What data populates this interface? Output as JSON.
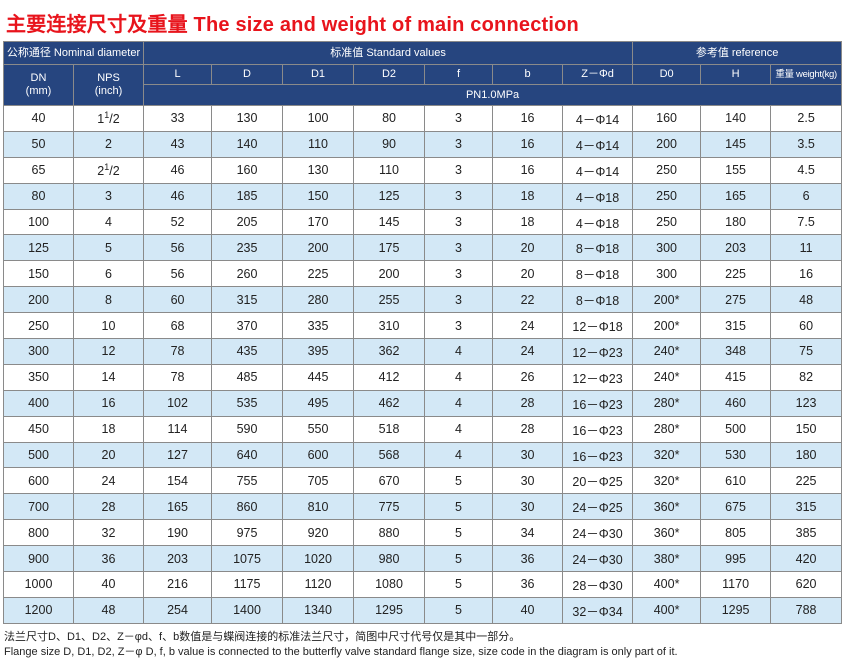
{
  "title": "主要连接尺寸及重量 The size and weight of main connection",
  "header": {
    "group_nominal": "公称通径 Nominal diameter",
    "group_standard": "标准值 Standard values",
    "group_reference": "参考值 reference",
    "dn": "DN",
    "dn_unit": "(mm)",
    "nps": "NPS",
    "nps_unit": "(inch)",
    "cols": [
      "L",
      "D",
      "D1",
      "D2",
      "f",
      "b",
      "Z－Φd",
      "D0",
      "H"
    ],
    "weight": "重量 weight(kg)",
    "pressure": "PN1.0MPa"
  },
  "rows": [
    {
      "dn": "40",
      "nps_main": "1",
      "nps_sup": "1",
      "nps_rest": "/2",
      "L": "33",
      "D": "130",
      "D1": "100",
      "D2": "80",
      "f": "3",
      "b": "16",
      "zd": "4－Φ14",
      "D0": "160",
      "H": "140",
      "w": "2.5"
    },
    {
      "dn": "50",
      "nps_main": "2",
      "nps_sup": "",
      "nps_rest": "",
      "L": "43",
      "D": "140",
      "D1": "110",
      "D2": "90",
      "f": "3",
      "b": "16",
      "zd": "4－Φ14",
      "D0": "200",
      "H": "145",
      "w": "3.5"
    },
    {
      "dn": "65",
      "nps_main": "2",
      "nps_sup": "1",
      "nps_rest": "/2",
      "L": "46",
      "D": "160",
      "D1": "130",
      "D2": "110",
      "f": "3",
      "b": "16",
      "zd": "4－Φ14",
      "D0": "250",
      "H": "155",
      "w": "4.5"
    },
    {
      "dn": "80",
      "nps_main": "3",
      "nps_sup": "",
      "nps_rest": "",
      "L": "46",
      "D": "185",
      "D1": "150",
      "D2": "125",
      "f": "3",
      "b": "18",
      "zd": "4－Φ18",
      "D0": "250",
      "H": "165",
      "w": "6"
    },
    {
      "dn": "100",
      "nps_main": "4",
      "nps_sup": "",
      "nps_rest": "",
      "L": "52",
      "D": "205",
      "D1": "170",
      "D2": "145",
      "f": "3",
      "b": "18",
      "zd": "4－Φ18",
      "D0": "250",
      "H": "180",
      "w": "7.5"
    },
    {
      "dn": "125",
      "nps_main": "5",
      "nps_sup": "",
      "nps_rest": "",
      "L": "56",
      "D": "235",
      "D1": "200",
      "D2": "175",
      "f": "3",
      "b": "20",
      "zd": "8－Φ18",
      "D0": "300",
      "H": "203",
      "w": "11"
    },
    {
      "dn": "150",
      "nps_main": "6",
      "nps_sup": "",
      "nps_rest": "",
      "L": "56",
      "D": "260",
      "D1": "225",
      "D2": "200",
      "f": "3",
      "b": "20",
      "zd": "8－Φ18",
      "D0": "300",
      "H": "225",
      "w": "16"
    },
    {
      "dn": "200",
      "nps_main": "8",
      "nps_sup": "",
      "nps_rest": "",
      "L": "60",
      "D": "315",
      "D1": "280",
      "D2": "255",
      "f": "3",
      "b": "22",
      "zd": "8－Φ18",
      "D0": "200*",
      "H": "275",
      "w": "48"
    },
    {
      "dn": "250",
      "nps_main": "10",
      "nps_sup": "",
      "nps_rest": "",
      "L": "68",
      "D": "370",
      "D1": "335",
      "D2": "310",
      "f": "3",
      "b": "24",
      "zd": "12－Φ18",
      "D0": "200*",
      "H": "315",
      "w": "60"
    },
    {
      "dn": "300",
      "nps_main": "12",
      "nps_sup": "",
      "nps_rest": "",
      "L": "78",
      "D": "435",
      "D1": "395",
      "D2": "362",
      "f": "4",
      "b": "24",
      "zd": "12－Φ23",
      "D0": "240*",
      "H": "348",
      "w": "75"
    },
    {
      "dn": "350",
      "nps_main": "14",
      "nps_sup": "",
      "nps_rest": "",
      "L": "78",
      "D": "485",
      "D1": "445",
      "D2": "412",
      "f": "4",
      "b": "26",
      "zd": "12－Φ23",
      "D0": "240*",
      "H": "415",
      "w": "82"
    },
    {
      "dn": "400",
      "nps_main": "16",
      "nps_sup": "",
      "nps_rest": "",
      "L": "102",
      "D": "535",
      "D1": "495",
      "D2": "462",
      "f": "4",
      "b": "28",
      "zd": "16－Φ23",
      "D0": "280*",
      "H": "460",
      "w": "123"
    },
    {
      "dn": "450",
      "nps_main": "18",
      "nps_sup": "",
      "nps_rest": "",
      "L": "114",
      "D": "590",
      "D1": "550",
      "D2": "518",
      "f": "4",
      "b": "28",
      "zd": "16－Φ23",
      "D0": "280*",
      "H": "500",
      "w": "150"
    },
    {
      "dn": "500",
      "nps_main": "20",
      "nps_sup": "",
      "nps_rest": "",
      "L": "127",
      "D": "640",
      "D1": "600",
      "D2": "568",
      "f": "4",
      "b": "30",
      "zd": "16－Φ23",
      "D0": "320*",
      "H": "530",
      "w": "180"
    },
    {
      "dn": "600",
      "nps_main": "24",
      "nps_sup": "",
      "nps_rest": "",
      "L": "154",
      "D": "755",
      "D1": "705",
      "D2": "670",
      "f": "5",
      "b": "30",
      "zd": "20－Φ25",
      "D0": "320*",
      "H": "610",
      "w": "225"
    },
    {
      "dn": "700",
      "nps_main": "28",
      "nps_sup": "",
      "nps_rest": "",
      "L": "165",
      "D": "860",
      "D1": "810",
      "D2": "775",
      "f": "5",
      "b": "30",
      "zd": "24－Φ25",
      "D0": "360*",
      "H": "675",
      "w": "315"
    },
    {
      "dn": "800",
      "nps_main": "32",
      "nps_sup": "",
      "nps_rest": "",
      "L": "190",
      "D": "975",
      "D1": "920",
      "D2": "880",
      "f": "5",
      "b": "34",
      "zd": "24－Φ30",
      "D0": "360*",
      "H": "805",
      "w": "385"
    },
    {
      "dn": "900",
      "nps_main": "36",
      "nps_sup": "",
      "nps_rest": "",
      "L": "203",
      "D": "1075",
      "D1": "1020",
      "D2": "980",
      "f": "5",
      "b": "36",
      "zd": "24－Φ30",
      "D0": "380*",
      "H": "995",
      "w": "420"
    },
    {
      "dn": "1000",
      "nps_main": "40",
      "nps_sup": "",
      "nps_rest": "",
      "L": "216",
      "D": "1175",
      "D1": "1120",
      "D2": "1080",
      "f": "5",
      "b": "36",
      "zd": "28－Φ30",
      "D0": "400*",
      "H": "1170",
      "w": "620"
    },
    {
      "dn": "1200",
      "nps_main": "48",
      "nps_sup": "",
      "nps_rest": "",
      "L": "254",
      "D": "1400",
      "D1": "1340",
      "D2": "1295",
      "f": "5",
      "b": "40",
      "zd": "32－Φ34",
      "D0": "400*",
      "H": "1295",
      "w": "788"
    }
  ],
  "notes": {
    "cn": "法兰尺寸D、D1、D2、Z－φd、f、b数值是与蝶阀连接的标准法兰尺寸，简图中尺寸代号仅是其中一部分。",
    "en": "Flange size D, D1, D2, Z－φ D, f, b value is connected to the butterfly valve standard flange size, size code in the diagram is only part of it."
  },
  "colors": {
    "title": "#e8141c",
    "header_bg": "#26457f",
    "header_text": "#ffffff",
    "row_alt": "#d3e8f6",
    "row_plain": "#ffffff"
  }
}
